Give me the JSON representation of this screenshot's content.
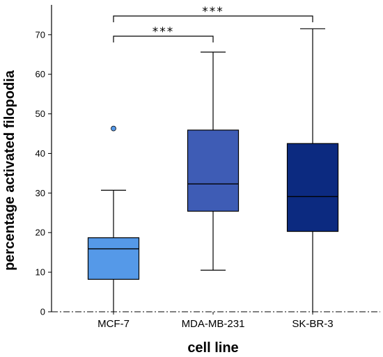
{
  "chart_data": {
    "type": "box",
    "title": "",
    "xlabel": "cell line",
    "ylabel": "percentage activated filopodia",
    "ylim": [
      0,
      77
    ],
    "yticks": [
      0,
      10,
      20,
      30,
      40,
      50,
      60,
      70
    ],
    "grid": false,
    "categories": [
      "MCF-7",
      "MDA-MB-231",
      "SK-BR-3"
    ],
    "boxes": [
      {
        "category": "MCF-7",
        "min": 0,
        "q1": 8.2,
        "median": 15.9,
        "q3": 18.7,
        "max": 30.7,
        "outliers": [
          46.3
        ],
        "color": "#5599e8"
      },
      {
        "category": "MDA-MB-231",
        "min": 10.5,
        "q1": 25.4,
        "median": 32.3,
        "q3": 45.9,
        "max": 65.6,
        "outliers": [],
        "color": "#3e5cb5"
      },
      {
        "category": "SK-BR-3",
        "min": 0,
        "q1": 20.3,
        "median": 29.1,
        "q3": 42.5,
        "max": 71.5,
        "outliers": [],
        "color": "#0c2a80"
      }
    ],
    "significance": [
      {
        "from": "MCF-7",
        "to": "MDA-MB-231",
        "label": "***"
      },
      {
        "from": "MCF-7",
        "to": "SK-BR-3",
        "label": "***"
      }
    ]
  }
}
